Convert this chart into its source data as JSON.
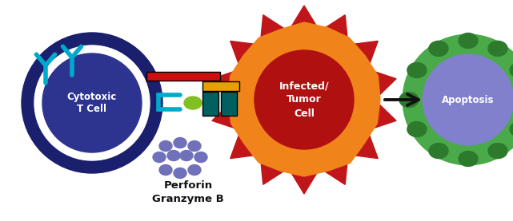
{
  "bg_color": "#ffffff",
  "colors": {
    "t_cell_outer": "#1a1f6e",
    "t_cell_inner": "#2d3490",
    "t_cell_white_ring": "#ffffff",
    "receptor_cyan": "#00aacc",
    "granule_purple": "#7070bb",
    "tumor_outer_red": "#c0161a",
    "tumor_orange": "#f0841a",
    "tumor_core_red": "#b01010",
    "connector_green": "#80c020",
    "connector_teal": "#006060",
    "connector_yellow": "#e8a000",
    "connector_red": "#cc1010",
    "apo_green_outer": "#2d7a2d",
    "apo_green_inner": "#4aaa4a",
    "apo_purple": "#8080cc",
    "arrow_color": "#111111",
    "text_dark": "#111111",
    "text_white": "#ffffff"
  },
  "labels": {
    "granzyme": "Granzyme B",
    "perforin": "Perforin",
    "tcell": "Cytotoxic\nT Cell",
    "tumor": "Infected/\nTumor\nCell",
    "apoptosis": "Apoptosis"
  },
  "figsize": [
    6.41,
    2.77
  ],
  "dpi": 100
}
